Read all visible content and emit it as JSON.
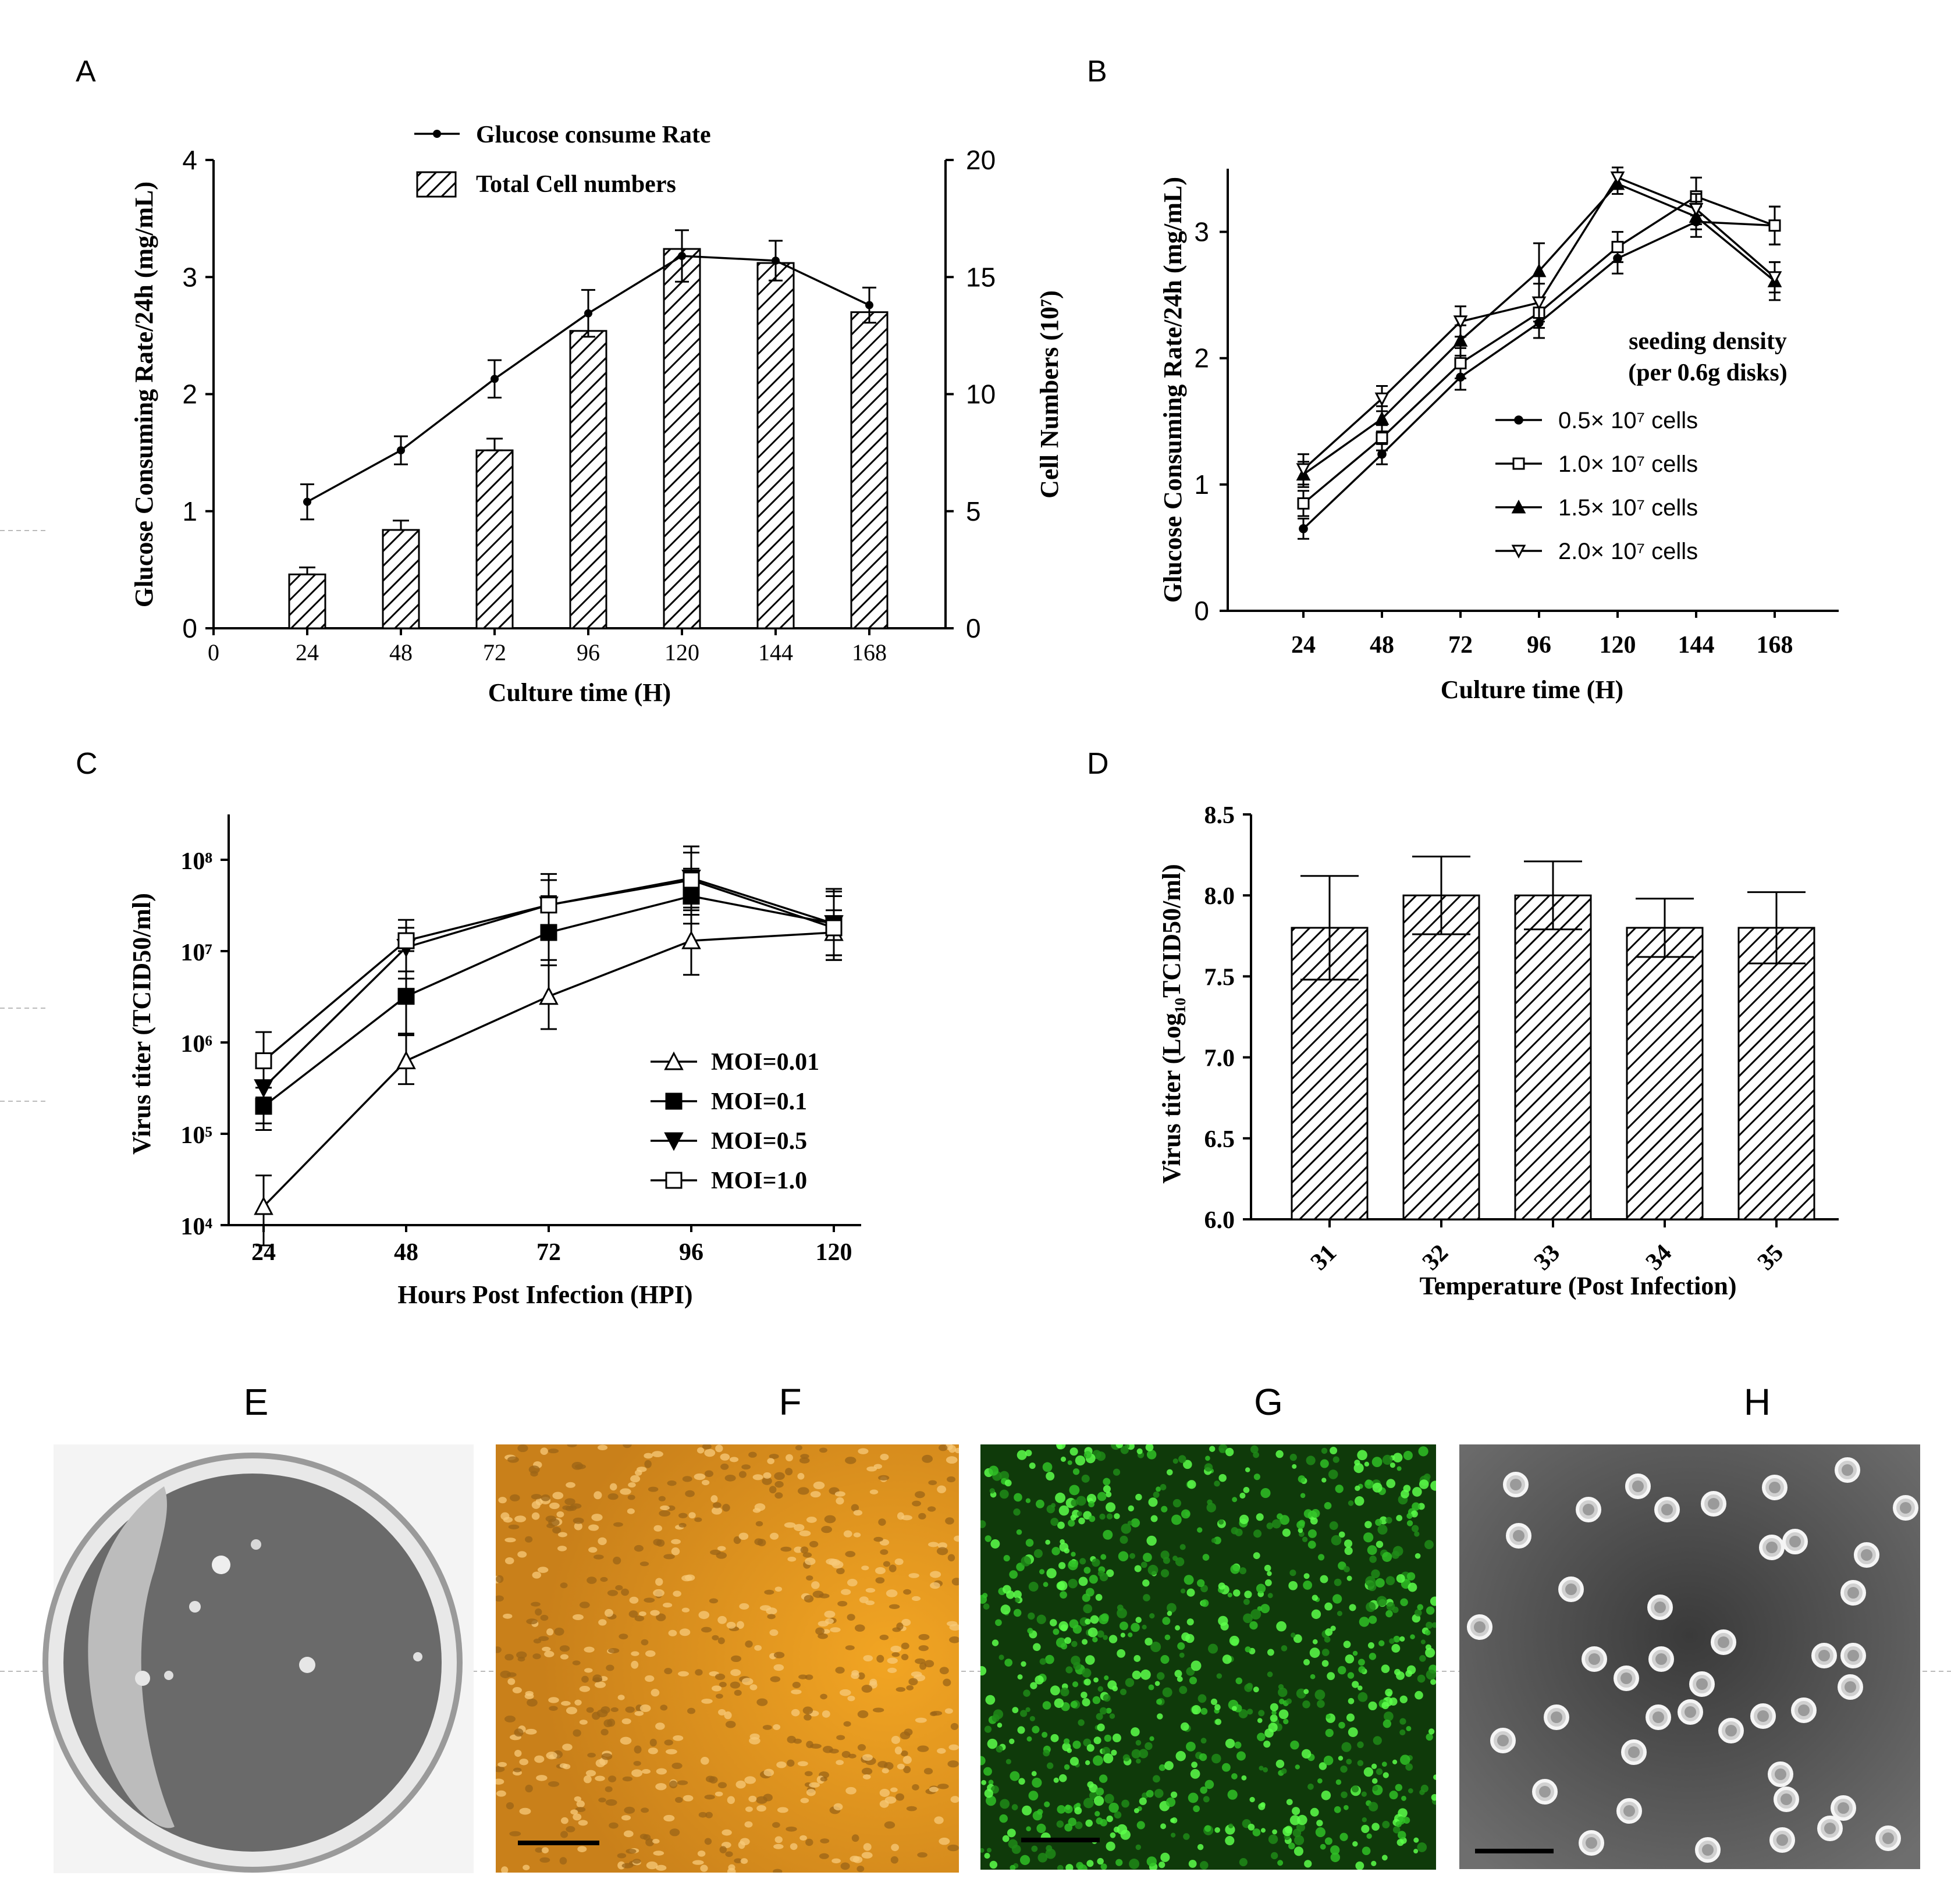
{
  "chart_data": [
    {
      "panel": "A",
      "type": "bar",
      "categories": [
        "24",
        "48",
        "72",
        "96",
        "120",
        "144",
        "168"
      ],
      "x_ticks": [
        "0",
        "24",
        "48",
        "72",
        "96",
        "120",
        "144",
        "168"
      ],
      "xlabel": "Culture time (H)",
      "ylabel_left": "Glucose Consuming Rate/24h (mg/mL)",
      "ylabel_right": "Cell Numbers (10⁷)",
      "ylim_left": [
        0,
        4
      ],
      "ylim_right": [
        0,
        20
      ],
      "yticks_left": [
        "0",
        "1",
        "2",
        "3",
        "4"
      ],
      "yticks_right": [
        "0",
        "5",
        "10",
        "15",
        "20"
      ],
      "series": [
        {
          "name": "Glucose consume  Rate",
          "kind": "line",
          "axis": "left",
          "values": [
            1.08,
            1.52,
            2.13,
            2.69,
            3.18,
            3.14,
            2.76
          ],
          "errors": [
            0.15,
            0.12,
            0.16,
            0.2,
            0.22,
            0.17,
            0.15
          ]
        },
        {
          "name": "Total Cell numbers",
          "kind": "bar",
          "axis": "right",
          "values": [
            2.3,
            4.2,
            7.6,
            12.7,
            16.2,
            15.6,
            13.5
          ],
          "errors": [
            0.3,
            0.4,
            0.5,
            0,
            0,
            0,
            0
          ]
        }
      ],
      "legend_position": "top"
    },
    {
      "panel": "B",
      "type": "line",
      "x": [
        24,
        48,
        72,
        96,
        120,
        144,
        168
      ],
      "xlabel": "Culture time (H)",
      "ylabel": "Glucose Consuming Rate/24h (mg/mL)",
      "ylim": [
        0,
        3.5
      ],
      "yticks": [
        "0",
        "1",
        "2",
        "3"
      ],
      "legend_title": [
        "seeding density",
        "(per 0.6g disks)"
      ],
      "series": [
        {
          "name": "0.5× 10⁷ cells",
          "marker": "filled-circle",
          "values": [
            0.65,
            1.24,
            1.85,
            2.28,
            2.79,
            3.08,
            3.05
          ],
          "errors": [
            0.08,
            0.08,
            0.1,
            0.12,
            0.12,
            0.12,
            0.15
          ]
        },
        {
          "name": "1.0× 10⁷ cells",
          "marker": "open-square",
          "values": [
            0.85,
            1.37,
            1.96,
            2.36,
            2.88,
            3.28,
            3.05
          ],
          "errors": [
            0.1,
            0.1,
            0.12,
            0.12,
            0.12,
            0.15,
            0.15
          ]
        },
        {
          "name": "1.5× 10⁷ cells",
          "marker": "filled-triangle",
          "values": [
            1.08,
            1.52,
            2.14,
            2.69,
            3.38,
            3.12,
            2.61
          ],
          "errors": [
            0.1,
            0.1,
            0.12,
            0.22,
            0.08,
            0.1,
            0.15
          ]
        },
        {
          "name": "2.0× 10⁷ cells",
          "marker": "open-triangle-down",
          "values": [
            1.12,
            1.68,
            2.29,
            2.44,
            3.43,
            3.18,
            2.64
          ],
          "errors": [
            0.12,
            0.1,
            0.12,
            0.15,
            0.08,
            0.12,
            0.12
          ]
        }
      ],
      "legend_position": "center-right"
    },
    {
      "panel": "C",
      "type": "line",
      "x": [
        24,
        48,
        72,
        96,
        120
      ],
      "xlabel": "Hours Post Infection (HPI)",
      "ylabel": "Virus titer (TCID50/ml)",
      "yscale": "log",
      "ylim": [
        10000,
        300000000
      ],
      "yticks": [
        "10⁴",
        "10⁵",
        "10⁶",
        "10⁷",
        "10⁸"
      ],
      "series": [
        {
          "name": "MOI=0.01",
          "marker": "open-triangle",
          "values": [
            16000,
            630000,
            3200000,
            13000000,
            16000000
          ],
          "err_low": [
            6000,
            350000,
            1400000,
            5500000,
            9000000
          ],
          "err_high": [
            35000,
            1250000,
            8000000,
            25000000,
            28000000
          ]
        },
        {
          "name": "MOI=0.1",
          "marker": "filled-square",
          "values": [
            200000,
            3200000,
            16000000,
            40000000,
            20000000
          ],
          "err_low": [
            110000,
            1200000,
            7000000,
            20000000,
            9000000
          ],
          "err_high": [
            320000,
            10000000,
            40000000,
            80000000,
            40000000
          ]
        },
        {
          "name": "MOI=0.5",
          "marker": "filled-triangle-down",
          "values": [
            320000,
            11000000,
            32000000,
            63000000,
            20000000
          ],
          "err_low": [
            130000,
            5000000,
            16000000,
            30000000,
            8000000
          ],
          "err_high": [
            600000,
            18000000,
            60000000,
            120000000,
            45000000
          ]
        },
        {
          "name": "MOI=1.0",
          "marker": "open-square",
          "values": [
            630000,
            13000000,
            32000000,
            60000000,
            18000000
          ],
          "err_low": [
            250000,
            6000000,
            15000000,
            28000000,
            8000000
          ],
          "err_high": [
            1300000,
            22000000,
            70000000,
            140000000,
            48000000
          ]
        }
      ],
      "legend_position": "bottom-right"
    },
    {
      "panel": "D",
      "type": "bar",
      "categories": [
        "31",
        "32",
        "33",
        "34",
        "35"
      ],
      "values": [
        7.8,
        8.0,
        8.0,
        7.8,
        7.8
      ],
      "err_low": [
        7.48,
        7.76,
        7.79,
        7.62,
        7.58
      ],
      "err_high": [
        8.12,
        8.24,
        8.21,
        7.98,
        8.02
      ],
      "xlabel": "Temperature (Post Infection)",
      "ylabel": "Virus titer (Log₁₀TCID50/ml)",
      "ylim": [
        6.0,
        8.5
      ],
      "yticks": [
        "6.0",
        "6.5",
        "7.0",
        "7.5",
        "8.0",
        "8.5"
      ]
    }
  ],
  "panels": {
    "a": "A",
    "b": "B",
    "c": "C",
    "d": "D",
    "e": "E",
    "f": "F",
    "g": "G",
    "h": "H"
  },
  "photo_colors": {
    "e_plate": "#6a6a6a",
    "f_brightfield": "#e59a1f",
    "g_fluorescence": "#0f3a0a",
    "h_em": "#2a2a2a"
  }
}
